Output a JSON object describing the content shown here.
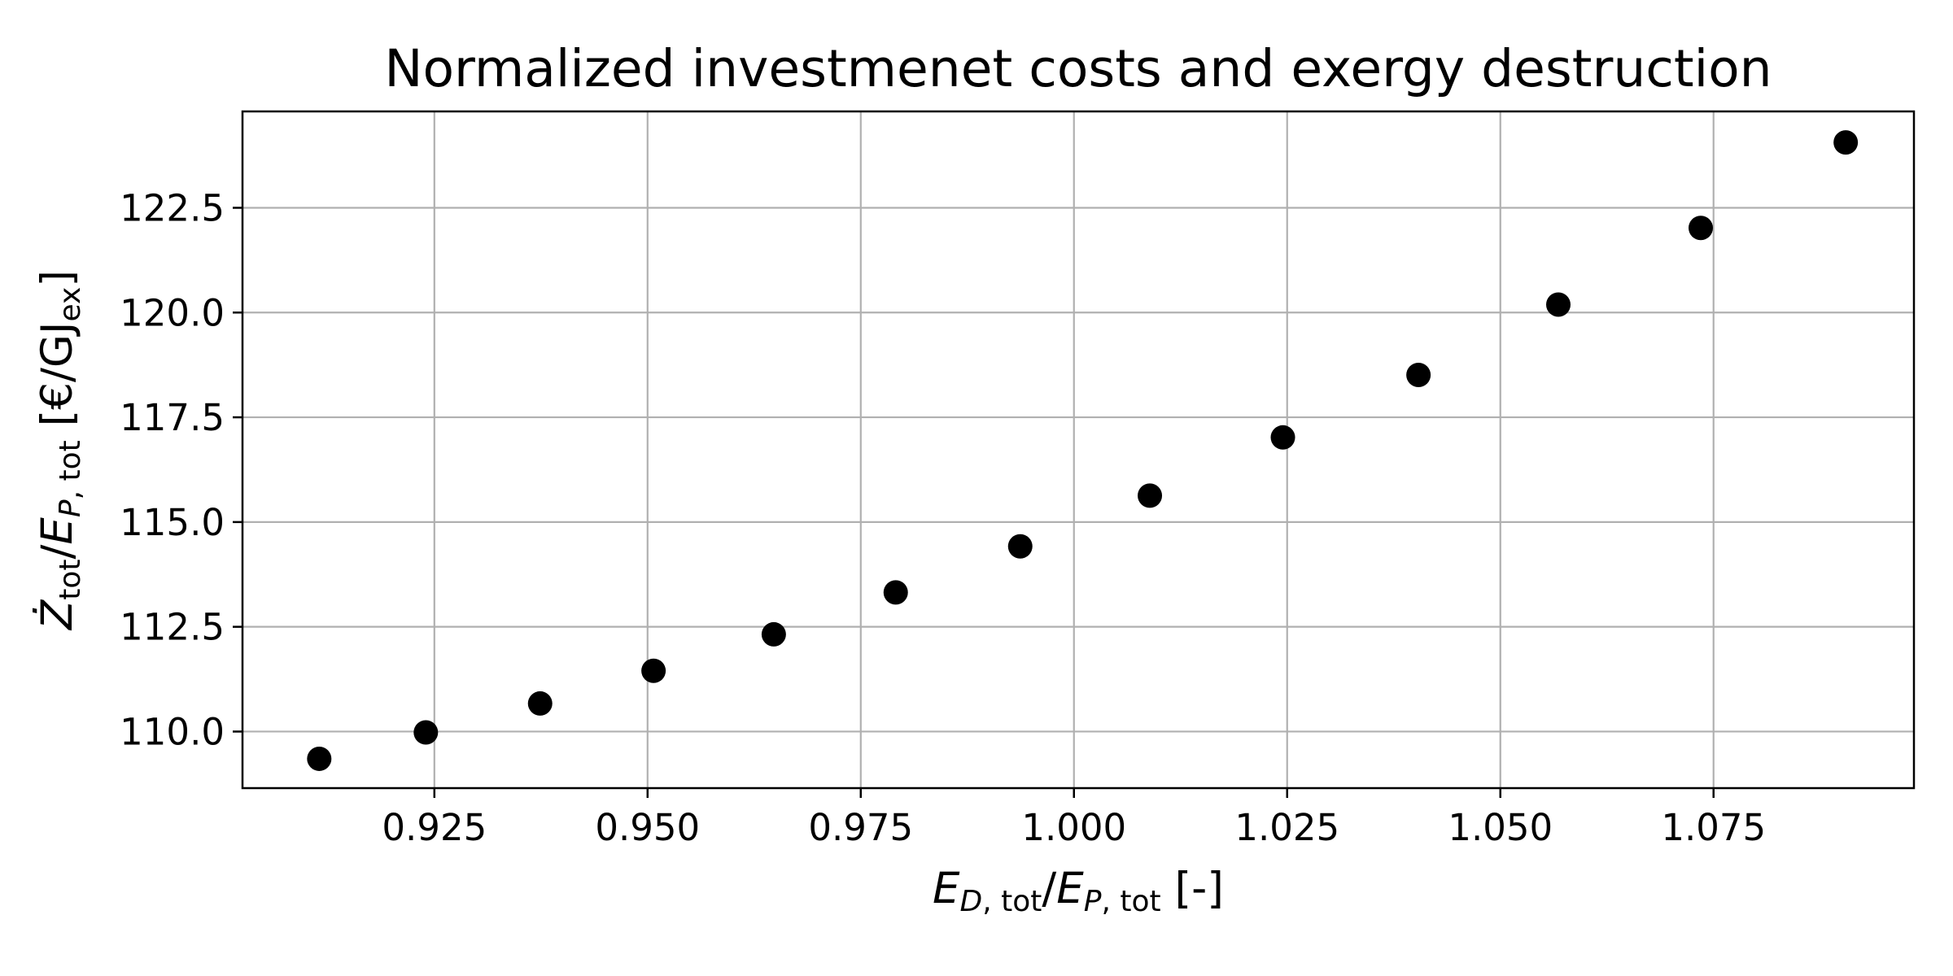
{
  "chart_data": {
    "type": "scatter",
    "title": "Normalized investmenet costs and exergy destruction",
    "xlabel": "E_{D,tot}/E_{P,tot} [-]",
    "ylabel": "Ż_tot/E_{P,tot} [€/GJ_ex]",
    "xlim": [
      0.9025,
      1.0985
    ],
    "ylim": [
      108.65,
      124.8
    ],
    "grid": true,
    "x_ticks": [
      0.925,
      0.95,
      0.975,
      1.0,
      1.025,
      1.05,
      1.075
    ],
    "y_ticks": [
      110.0,
      112.5,
      115.0,
      117.5,
      120.0,
      122.5
    ],
    "marker_color": "#000000",
    "points": [
      {
        "x": 0.9115,
        "y": 109.35
      },
      {
        "x": 0.924,
        "y": 109.98
      },
      {
        "x": 0.9374,
        "y": 110.67
      },
      {
        "x": 0.9507,
        "y": 111.45
      },
      {
        "x": 0.9648,
        "y": 112.32
      },
      {
        "x": 0.9791,
        "y": 113.32
      },
      {
        "x": 0.9937,
        "y": 114.42
      },
      {
        "x": 1.0089,
        "y": 115.63
      },
      {
        "x": 1.0245,
        "y": 117.02
      },
      {
        "x": 1.0404,
        "y": 118.51
      },
      {
        "x": 1.0568,
        "y": 120.19
      },
      {
        "x": 1.0735,
        "y": 122.02
      },
      {
        "x": 1.0905,
        "y": 124.06
      }
    ]
  }
}
